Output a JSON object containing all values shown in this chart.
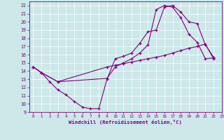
{
  "xlabel": "Windchill (Refroidissement éolien,°C)",
  "bg_color": "#cce8e8",
  "line_color": "#800080",
  "grid_color": "#ffffff",
  "xlim": [
    -0.5,
    23
  ],
  "ylim": [
    9,
    22.5
  ],
  "xticks": [
    0,
    1,
    2,
    3,
    4,
    5,
    6,
    7,
    8,
    9,
    10,
    11,
    12,
    13,
    14,
    15,
    16,
    17,
    18,
    19,
    20,
    21,
    22,
    23
  ],
  "yticks": [
    9,
    10,
    11,
    12,
    13,
    14,
    15,
    16,
    17,
    18,
    19,
    20,
    21,
    22
  ],
  "curve1_x": [
    0,
    1,
    2,
    3,
    4,
    5,
    6,
    7,
    8,
    9,
    10,
    11,
    12,
    13,
    14,
    15,
    16,
    17,
    18,
    19,
    20,
    21,
    22
  ],
  "curve1_y": [
    14.5,
    13.8,
    12.7,
    11.7,
    11.1,
    10.3,
    9.6,
    9.4,
    9.4,
    13.0,
    15.5,
    15.8,
    16.2,
    17.4,
    18.8,
    19.0,
    21.8,
    22.0,
    21.2,
    20.0,
    19.8,
    17.2,
    15.7
  ],
  "curve2_x": [
    0,
    1,
    3,
    9,
    10,
    11,
    12,
    13,
    14,
    15,
    16,
    17,
    18,
    19,
    20,
    21,
    22
  ],
  "curve2_y": [
    14.5,
    13.8,
    12.7,
    13.1,
    14.5,
    15.0,
    15.5,
    16.2,
    17.2,
    21.5,
    22.0,
    21.8,
    20.5,
    18.5,
    17.5,
    15.5,
    15.6
  ],
  "curve3_x": [
    0,
    1,
    3,
    9,
    10,
    11,
    12,
    13,
    14,
    15,
    16,
    17,
    18,
    19,
    20,
    21,
    22
  ],
  "curve3_y": [
    14.5,
    13.8,
    12.7,
    14.5,
    14.7,
    14.9,
    15.1,
    15.3,
    15.5,
    15.7,
    15.9,
    16.2,
    16.5,
    16.8,
    17.0,
    17.3,
    15.5
  ]
}
